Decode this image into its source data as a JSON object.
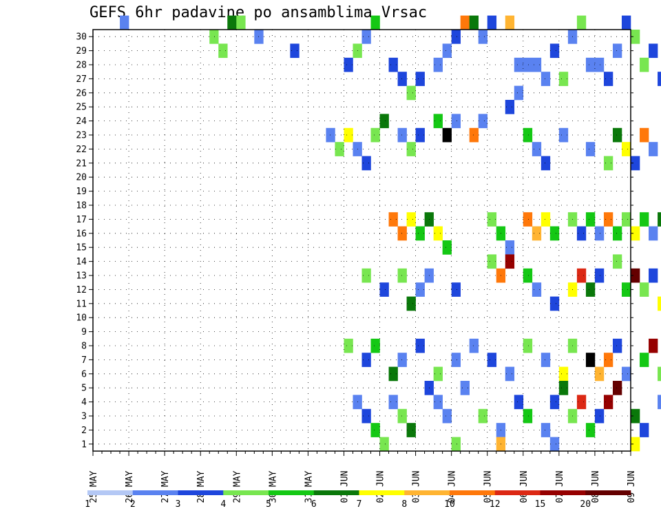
{
  "chart_data": {
    "type": "heatmap",
    "title": "GEFS 6hr padavine po ansamblima Vrsac",
    "xlabel": "",
    "ylabel": "",
    "x_tick_labels": [
      "25 MAY",
      "26 MAY",
      "27 MAY",
      "28 MAY",
      "29 MAY",
      "30 MAY",
      "31 MAY",
      "01 JUN",
      "02 JUN",
      "03 JUN",
      "04 JUN",
      "05 JUN",
      "06 JUN",
      "07 JUN",
      "08 JUN",
      "09 JUN"
    ],
    "x_steps_per_day": 4,
    "y_tick_labels": [
      "1",
      "2",
      "3",
      "4",
      "5",
      "6",
      "7",
      "8",
      "9",
      "10",
      "11",
      "12",
      "13",
      "14",
      "15",
      "16",
      "17",
      "18",
      "19",
      "20",
      "21",
      "22",
      "23",
      "24",
      "25",
      "26",
      "27",
      "28",
      "29",
      "30"
    ],
    "y_range": [
      0,
      30
    ],
    "grid": true,
    "legend_placement": "bottom",
    "legend": {
      "labels": [
        "1",
        "2",
        "3",
        "4",
        "5",
        "6",
        "7",
        "8",
        "10",
        "12",
        "15",
        "20"
      ],
      "colors": [
        "#b4c8f5",
        "#5a82f0",
        "#1e46dc",
        "#78e650",
        "#14c814",
        "#0a780a",
        "#ffff00",
        "#ffb432",
        "#ff780a",
        "#dc2814",
        "#960000",
        "#640000"
      ]
    },
    "cells": [
      [
        3,
        30,
        1
      ],
      [
        13,
        29,
        3
      ],
      [
        14,
        28,
        3
      ],
      [
        15,
        30,
        5
      ],
      [
        16,
        30,
        3
      ],
      [
        18,
        29,
        1
      ],
      [
        22,
        28,
        2
      ],
      [
        28,
        27,
        2
      ],
      [
        29,
        28,
        3
      ],
      [
        30,
        29,
        1
      ],
      [
        31,
        30,
        4
      ],
      [
        33,
        27,
        2
      ],
      [
        34,
        26,
        2
      ],
      [
        35,
        25,
        3
      ],
      [
        36,
        26,
        2
      ],
      [
        38,
        27,
        1
      ],
      [
        39,
        28,
        1
      ],
      [
        40,
        29,
        2
      ],
      [
        41,
        30,
        8
      ],
      [
        42,
        30,
        5
      ],
      [
        43,
        29,
        1
      ],
      [
        44,
        30,
        2
      ],
      [
        46,
        30,
        7
      ],
      [
        47,
        27,
        1
      ],
      [
        48,
        27,
        1
      ],
      [
        49,
        27,
        1
      ],
      [
        50,
        26,
        1
      ],
      [
        51,
        28,
        2
      ],
      [
        52,
        26,
        3
      ],
      [
        53,
        29,
        1
      ],
      [
        54,
        30,
        3
      ],
      [
        55,
        27,
        1
      ],
      [
        56,
        27,
        1
      ],
      [
        57,
        26,
        2
      ],
      [
        58,
        28,
        1
      ],
      [
        59,
        30,
        2
      ],
      [
        60,
        29,
        3
      ],
      [
        61,
        27,
        3
      ],
      [
        62,
        28,
        2
      ],
      [
        63,
        26,
        2
      ],
      [
        64,
        29,
        1
      ],
      [
        65,
        26,
        2
      ],
      [
        66,
        27,
        1
      ],
      [
        67,
        25,
        1
      ],
      [
        68,
        26,
        4
      ],
      [
        69,
        24,
        2
      ],
      [
        70,
        27,
        1
      ],
      [
        71,
        28,
        2
      ],
      [
        72,
        30,
        1
      ],
      [
        73,
        28,
        2
      ],
      [
        74,
        29,
        1
      ],
      [
        75,
        27,
        2
      ],
      [
        76,
        30,
        3
      ],
      [
        77,
        29,
        2
      ],
      [
        78,
        30,
        1
      ],
      [
        79,
        28,
        1
      ],
      [
        33,
        16,
        8
      ],
      [
        34,
        15,
        8
      ],
      [
        35,
        16,
        6
      ],
      [
        36,
        15,
        4
      ],
      [
        37,
        16,
        5
      ],
      [
        38,
        15,
        6
      ],
      [
        39,
        14,
        4
      ],
      [
        44,
        16,
        3
      ],
      [
        45,
        15,
        4
      ],
      [
        46,
        14,
        1
      ],
      [
        48,
        16,
        8
      ],
      [
        49,
        15,
        7
      ],
      [
        50,
        16,
        6
      ],
      [
        51,
        15,
        4
      ],
      [
        53,
        16,
        3
      ],
      [
        54,
        15,
        2
      ],
      [
        55,
        16,
        4
      ],
      [
        56,
        15,
        1
      ],
      [
        57,
        16,
        8
      ],
      [
        58,
        15,
        4
      ],
      [
        59,
        16,
        3
      ],
      [
        60,
        15,
        6
      ],
      [
        61,
        16,
        4
      ],
      [
        62,
        15,
        1
      ],
      [
        63,
        16,
        5
      ],
      [
        64,
        15,
        10
      ],
      [
        65,
        16,
        6
      ],
      [
        66,
        15,
        4
      ],
      [
        67,
        16,
        11
      ],
      [
        68,
        15,
        8
      ],
      [
        69,
        16,
        7
      ],
      [
        70,
        15,
        1
      ],
      [
        71,
        16,
        3
      ],
      [
        72,
        15,
        2
      ],
      [
        73,
        16,
        5
      ],
      [
        74,
        15,
        3
      ],
      [
        26,
        22,
        1
      ],
      [
        27,
        21,
        3
      ],
      [
        28,
        22,
        6
      ],
      [
        29,
        21,
        1
      ],
      [
        30,
        20,
        2
      ],
      [
        31,
        22,
        3
      ],
      [
        32,
        23,
        5
      ],
      [
        34,
        22,
        1
      ],
      [
        35,
        21,
        3
      ],
      [
        36,
        22,
        2
      ],
      [
        38,
        23,
        4
      ],
      [
        39,
        22,
        12
      ],
      [
        40,
        23,
        1
      ],
      [
        42,
        22,
        8
      ],
      [
        43,
        23,
        1
      ],
      [
        46,
        24,
        2
      ],
      [
        47,
        25,
        1
      ],
      [
        48,
        22,
        4
      ],
      [
        49,
        21,
        1
      ],
      [
        50,
        20,
        2
      ],
      [
        52,
        22,
        1
      ],
      [
        55,
        21,
        1
      ],
      [
        57,
        20,
        3
      ],
      [
        58,
        22,
        5
      ],
      [
        59,
        21,
        6
      ],
      [
        60,
        20,
        2
      ],
      [
        61,
        22,
        8
      ],
      [
        62,
        21,
        1
      ],
      [
        64,
        20,
        4
      ],
      [
        65,
        22,
        1
      ],
      [
        67,
        20,
        2
      ],
      [
        69,
        22,
        3
      ],
      [
        70,
        21,
        2
      ],
      [
        71,
        20,
        1
      ],
      [
        72,
        22,
        2
      ],
      [
        73,
        21,
        1
      ],
      [
        74,
        20,
        1
      ],
      [
        75,
        22,
        4
      ],
      [
        76,
        21,
        5
      ],
      [
        77,
        20,
        2
      ],
      [
        30,
        12,
        3
      ],
      [
        32,
        11,
        2
      ],
      [
        34,
        12,
        3
      ],
      [
        35,
        10,
        5
      ],
      [
        36,
        11,
        1
      ],
      [
        37,
        12,
        1
      ],
      [
        40,
        11,
        2
      ],
      [
        44,
        13,
        3
      ],
      [
        45,
        12,
        8
      ],
      [
        46,
        13,
        10
      ],
      [
        48,
        12,
        4
      ],
      [
        49,
        11,
        1
      ],
      [
        51,
        10,
        2
      ],
      [
        53,
        11,
        6
      ],
      [
        54,
        12,
        9
      ],
      [
        55,
        11,
        5
      ],
      [
        56,
        12,
        2
      ],
      [
        58,
        13,
        3
      ],
      [
        59,
        11,
        4
      ],
      [
        60,
        12,
        11
      ],
      [
        61,
        11,
        3
      ],
      [
        62,
        12,
        2
      ],
      [
        63,
        10,
        6
      ],
      [
        64,
        11,
        2
      ],
      [
        66,
        12,
        1
      ],
      [
        67,
        10,
        8
      ],
      [
        68,
        11,
        2
      ],
      [
        69,
        10,
        1
      ],
      [
        70,
        12,
        1
      ],
      [
        71,
        11,
        2
      ],
      [
        72,
        10,
        4
      ],
      [
        73,
        12,
        1
      ],
      [
        74,
        11,
        1
      ],
      [
        75,
        10,
        7
      ],
      [
        76,
        11,
        2
      ],
      [
        77,
        10,
        1
      ],
      [
        78,
        11,
        1
      ],
      [
        28,
        7,
        3
      ],
      [
        30,
        6,
        2
      ],
      [
        31,
        7,
        4
      ],
      [
        33,
        5,
        5
      ],
      [
        34,
        6,
        1
      ],
      [
        36,
        7,
        2
      ],
      [
        38,
        5,
        3
      ],
      [
        40,
        6,
        1
      ],
      [
        42,
        7,
        1
      ],
      [
        44,
        6,
        2
      ],
      [
        46,
        5,
        1
      ],
      [
        48,
        7,
        3
      ],
      [
        50,
        6,
        1
      ],
      [
        52,
        5,
        6
      ],
      [
        53,
        7,
        3
      ],
      [
        55,
        6,
        12
      ],
      [
        56,
        5,
        7
      ],
      [
        57,
        6,
        8
      ],
      [
        58,
        7,
        2
      ],
      [
        59,
        5,
        1
      ],
      [
        61,
        6,
        4
      ],
      [
        62,
        7,
        10
      ],
      [
        63,
        5,
        3
      ],
      [
        64,
        6,
        11
      ],
      [
        66,
        7,
        1
      ],
      [
        68,
        5,
        1
      ],
      [
        70,
        6,
        2
      ],
      [
        71,
        7,
        5
      ],
      [
        73,
        5,
        1
      ],
      [
        75,
        6,
        3
      ],
      [
        77,
        7,
        1
      ],
      [
        79,
        6,
        12
      ],
      [
        29,
        3,
        1
      ],
      [
        30,
        2,
        2
      ],
      [
        31,
        1,
        4
      ],
      [
        33,
        3,
        1
      ],
      [
        34,
        2,
        3
      ],
      [
        35,
        1,
        5
      ],
      [
        37,
        4,
        2
      ],
      [
        38,
        3,
        1
      ],
      [
        39,
        2,
        1
      ],
      [
        41,
        4,
        1
      ],
      [
        43,
        2,
        3
      ],
      [
        45,
        1,
        1
      ],
      [
        47,
        3,
        2
      ],
      [
        48,
        2,
        4
      ],
      [
        50,
        1,
        1
      ],
      [
        51,
        3,
        2
      ],
      [
        52,
        4,
        5
      ],
      [
        53,
        2,
        3
      ],
      [
        54,
        3,
        9
      ],
      [
        55,
        1,
        4
      ],
      [
        56,
        2,
        2
      ],
      [
        57,
        3,
        10
      ],
      [
        58,
        4,
        11
      ],
      [
        60,
        2,
        5
      ],
      [
        61,
        1,
        2
      ],
      [
        63,
        3,
        1
      ],
      [
        64,
        2,
        3
      ],
      [
        65,
        4,
        2
      ],
      [
        66,
        1,
        6
      ],
      [
        67,
        3,
        1
      ],
      [
        68,
        2,
        2
      ],
      [
        70,
        4,
        1
      ],
      [
        72,
        1,
        1
      ],
      [
        74,
        2,
        2
      ],
      [
        75,
        3,
        1
      ],
      [
        76,
        4,
        1
      ],
      [
        77,
        2,
        2
      ],
      [
        78,
        3,
        5
      ],
      [
        79,
        4,
        1
      ],
      [
        32,
        0,
        3
      ],
      [
        40,
        0,
        3
      ],
      [
        45,
        0,
        7
      ],
      [
        51,
        0,
        1
      ],
      [
        60,
        0,
        6
      ]
    ]
  }
}
